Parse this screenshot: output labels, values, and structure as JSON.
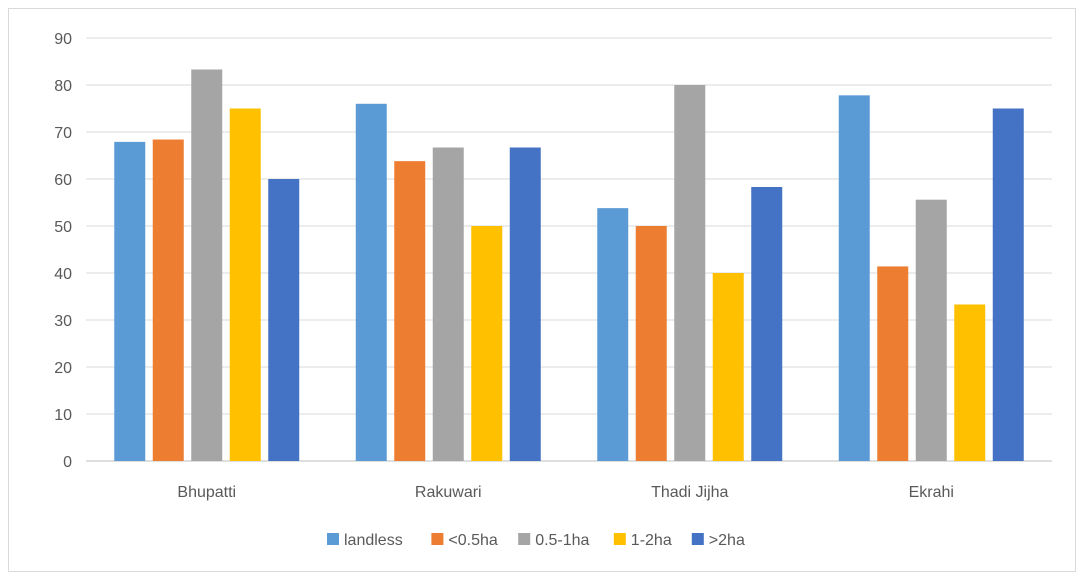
{
  "chart_data": {
    "type": "bar",
    "categories": [
      "Bhupatti",
      "Rakuwari",
      "Thadi Jijha",
      "Ekrahi"
    ],
    "series": [
      {
        "name": "landless",
        "color": "#5b9bd5",
        "values": [
          67.9,
          76.0,
          53.8,
          77.8
        ]
      },
      {
        "name": "<0.5ha",
        "color": "#ed7d31",
        "values": [
          68.4,
          63.8,
          50.0,
          41.4
        ]
      },
      {
        "name": "0.5-1ha",
        "color": "#a5a5a5",
        "values": [
          83.3,
          66.7,
          80.0,
          55.6
        ]
      },
      {
        "name": "1-2ha",
        "color": "#ffc000",
        "values": [
          75.0,
          50.0,
          40.0,
          33.3
        ]
      },
      {
        "name": ">2ha",
        "color": "#4472c4",
        "values": [
          60.0,
          66.7,
          58.3,
          75.0
        ]
      }
    ],
    "ylim": [
      0,
      90
    ],
    "yticks": [
      0,
      10,
      20,
      30,
      40,
      50,
      60,
      70,
      80,
      90
    ],
    "grid": true,
    "legend_position": "bottom"
  }
}
